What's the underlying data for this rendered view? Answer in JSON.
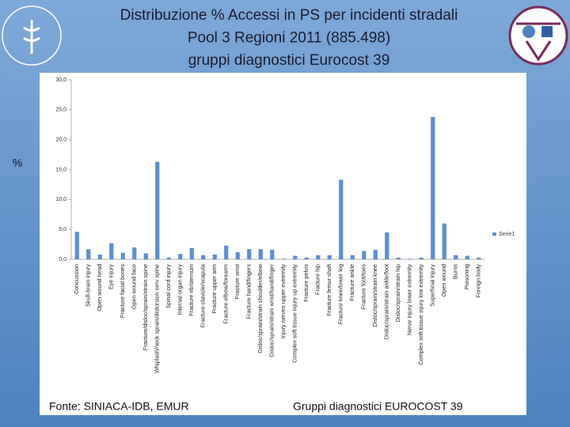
{
  "chart_data": {
    "type": "bar",
    "title_lines": [
      "Distribuzione % Accessi in PS per incidenti stradali",
      "Pool 3 Regioni 2011 (885.498)",
      "gruppi diagnostici Eurocost 39"
    ],
    "y_label": "%",
    "logo_text": "ISTITUTO SUPERIORE DI SANITÀ",
    "source": "Fonte: SINIACA-IDB, EMUR",
    "note": "Gruppi diagnostici EUROCOST 39",
    "categories": [
      "Concussion",
      "Skull-brain injury",
      "Open wound head",
      "Eye injury",
      "Fracture facial bones",
      "Open wound face",
      "Fracture/disloc/sprain/strain spine",
      "Whiplash/neck sprain/distorsion cerv spine",
      "Spinal cord injury",
      "Internal organ injury",
      "Fracture rib/sternum",
      "Fracture clavicle/scapula",
      "Fracture upper arm",
      "Fracture elbow/forearm",
      "Fracture wrist",
      "Fracture hand/fingers",
      "Disloc/sprain/strain shoulder/elbow",
      "Disloc/sprain/strain wrist/hand/finger",
      "Injury nerves upper extremity",
      "Complex soft tissue injury up extremity",
      "Fracture pelvis",
      "Fracture hip",
      "Fracture femur shaft",
      "Fracture knee/lower leg",
      "Fracture ankle",
      "Fracture foot/toes",
      "Disloc/sprain/strain knee",
      "Disloc/sprain/strain ankle/foot",
      "Disloc/sprain/strain hip",
      "Nerve injury lower extremity",
      "Complex soft tissue injury low extremity",
      "Superficial injury",
      "Open wound",
      "Burns",
      "Poisoning",
      "Foreign body"
    ],
    "series": [
      {
        "name": "Serie1",
        "color": "#5b8ed6",
        "values": [
          4.6,
          1.7,
          0.8,
          2.7,
          1.1,
          2.0,
          1.0,
          16.3,
          0.3,
          0.9,
          1.9,
          0.7,
          0.8,
          2.3,
          1.2,
          1.7,
          1.7,
          1.6,
          0.1,
          0.6,
          0.3,
          0.7,
          0.7,
          13.3,
          0.7,
          1.4,
          1.6,
          4.5,
          0.3,
          0.1,
          0.3,
          23.8,
          6.0,
          0.7,
          0.6,
          0.3
        ]
      }
    ],
    "ylim": [
      0,
      30
    ],
    "yticks": [
      {
        "value": 0,
        "label": "0,0"
      },
      {
        "value": 5,
        "label": "5,0"
      },
      {
        "value": 10,
        "label": "10,0"
      },
      {
        "value": 15,
        "label": "15,0"
      },
      {
        "value": 20,
        "label": "20,0"
      },
      {
        "value": 25,
        "label": "25,0"
      },
      {
        "value": 30,
        "label": "30,0"
      }
    ],
    "grid": false,
    "legend": "right"
  }
}
